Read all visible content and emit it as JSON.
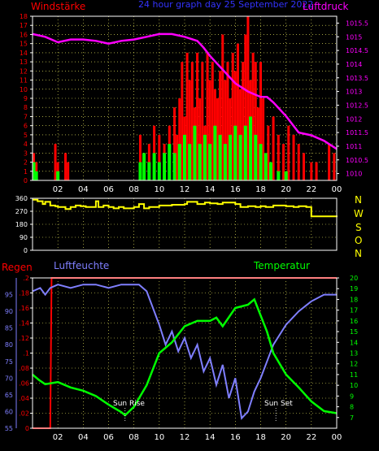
{
  "header": {
    "left_label": "Windstärke",
    "center_title": "24 hour graph day 25 September 2022",
    "right_label": "Luftdruck"
  },
  "wind_dir_labels": [
    "N",
    "W",
    "S",
    "O",
    "N"
  ],
  "bottom_labels": {
    "regen": "Regen",
    "luftfeuchte": "Luftfeuchte",
    "temperatur": "Temperatur",
    "sun_rise": "Sun Rise",
    "sun_set": "Sun Set"
  },
  "colors": {
    "background": "#000000",
    "axis": "#ffffff",
    "grid": "#ffff66",
    "wind_gust": "#ff0000",
    "wind_avg": "#00ff00",
    "pressure": "#ff00ff",
    "direction": "#ffff00",
    "humidity": "#7f7fff",
    "temperature": "#00ff00",
    "rain": "#ff0000",
    "title": "#3333ff",
    "right_axis_top": "#ff00ff",
    "tick_blue": "#7f7fff",
    "tick_green": "#00ff00"
  },
  "chart_data": [
    {
      "type": "bar",
      "name": "Windstärke / Luftdruck",
      "x_ticks": [
        "02",
        "04",
        "06",
        "08",
        "10",
        "12",
        "14",
        "16",
        "18",
        "20",
        "22",
        "00"
      ],
      "xlim": [
        0,
        24
      ],
      "left_axis": {
        "label": "Windstärke",
        "ylim": [
          0,
          18
        ],
        "ticks": [
          0,
          1,
          2,
          3,
          4,
          5,
          6,
          7,
          8,
          9,
          10,
          11,
          12,
          13,
          14,
          15,
          16,
          17,
          18
        ]
      },
      "right_axis": {
        "label": "Luftdruck",
        "ylim": [
          1009.75,
          1015.75
        ],
        "ticks": [
          1010,
          1010.5,
          1011,
          1011.5,
          1012,
          1012.5,
          1013,
          1013.5,
          1014,
          1014.5,
          1015,
          1015.5
        ]
      },
      "series": [
        {
          "name": "Windstärke",
          "kind": "gust",
          "x": [
            0.1,
            0.3,
            1.8,
            2.0,
            2.6,
            2.8,
            8.5,
            8.8,
            9.2,
            9.6,
            10.0,
            10.4,
            10.8,
            11.2,
            11.4,
            11.6,
            11.8,
            12.0,
            12.2,
            12.4,
            12.6,
            12.8,
            13.0,
            13.2,
            13.4,
            13.6,
            13.8,
            14.0,
            14.2,
            14.4,
            14.6,
            14.8,
            15.0,
            15.2,
            15.4,
            15.6,
            15.8,
            16.0,
            16.2,
            16.4,
            16.6,
            16.8,
            17.0,
            17.2,
            17.4,
            17.6,
            17.8,
            18.0,
            18.2,
            18.6,
            19.0,
            19.4,
            19.8,
            20.2,
            20.6,
            21.0,
            21.4,
            22.0,
            22.4,
            23.4,
            23.8
          ],
          "values": [
            3,
            2,
            4,
            2,
            3,
            2,
            5,
            3,
            4,
            6,
            5,
            4,
            6,
            8,
            5,
            9,
            13,
            7,
            14,
            11,
            13,
            8,
            14,
            9,
            13,
            6,
            14,
            11,
            13,
            10,
            9,
            12,
            16,
            11,
            13,
            9,
            14,
            12,
            15,
            10,
            13,
            16,
            18,
            11,
            14,
            13,
            8,
            13,
            9,
            6,
            7,
            5,
            4,
            6,
            5,
            4,
            3,
            2,
            2,
            4,
            3
          ]
        },
        {
          "name": "Windstärke",
          "kind": "avg",
          "x": [
            0.1,
            0.3,
            2.0,
            8.5,
            8.8,
            9.2,
            9.6,
            10.0,
            10.4,
            10.8,
            11.2,
            11.6,
            12.0,
            12.4,
            12.8,
            13.2,
            13.6,
            14.0,
            14.4,
            14.8,
            15.2,
            15.6,
            16.0,
            16.4,
            16.8,
            17.2,
            17.6,
            18.0,
            18.4,
            18.8,
            19.4,
            20.0
          ],
          "values": [
            2,
            1,
            1,
            2,
            3,
            2,
            3,
            2,
            3,
            4,
            3,
            4,
            5,
            4,
            6,
            4,
            5,
            4,
            6,
            5,
            4,
            5,
            6,
            5,
            6,
            7,
            5,
            4,
            3,
            2,
            1,
            1
          ]
        },
        {
          "name": "Luftdruck",
          "kind": "pressure",
          "x": [
            0,
            1,
            2,
            3,
            4,
            5,
            6,
            7,
            8,
            9,
            10,
            11,
            12,
            13,
            13.5,
            14,
            15,
            16,
            17,
            17.5,
            18,
            18.5,
            19,
            20,
            21,
            22,
            23,
            24
          ],
          "values": [
            1015.1,
            1015.0,
            1014.8,
            1014.9,
            1014.9,
            1014.85,
            1014.75,
            1014.85,
            1014.9,
            1015.0,
            1015.1,
            1015.1,
            1015.0,
            1014.85,
            1014.6,
            1014.3,
            1013.8,
            1013.3,
            1013.0,
            1012.9,
            1012.8,
            1012.8,
            1012.6,
            1012.1,
            1011.5,
            1011.4,
            1011.2,
            1010.9
          ]
        }
      ]
    },
    {
      "type": "line",
      "name": "Windrichtung",
      "x_ticks": [
        "02",
        "04",
        "06",
        "08",
        "10",
        "12",
        "14",
        "16",
        "18",
        "20",
        "22",
        "00"
      ],
      "xlim": [
        0,
        24
      ],
      "ylim": [
        0,
        360
      ],
      "y_ticks": [
        0,
        90,
        180,
        270,
        360
      ],
      "series": [
        {
          "name": "Windrichtung",
          "x": [
            0,
            0.4,
            0.8,
            1.0,
            1.4,
            1.8,
            2.0,
            2.6,
            3.0,
            3.4,
            3.8,
            4.2,
            4.6,
            5.0,
            5.2,
            5.6,
            6.0,
            6.4,
            6.8,
            7.2,
            8.0,
            8.4,
            8.8,
            9.2,
            10.0,
            11.0,
            12.0,
            12.2,
            13.0,
            13.6,
            14.0,
            14.6,
            15.0,
            16.0,
            16.4,
            17.0,
            17.6,
            18.0,
            18.4,
            19.0,
            20.0,
            20.6,
            21.0,
            21.6,
            22.0,
            24.0
          ],
          "values": [
            350,
            340,
            320,
            335,
            310,
            305,
            300,
            285,
            300,
            310,
            305,
            300,
            300,
            340,
            300,
            310,
            300,
            290,
            300,
            290,
            300,
            320,
            290,
            300,
            310,
            315,
            320,
            335,
            320,
            330,
            325,
            320,
            330,
            320,
            300,
            305,
            300,
            305,
            300,
            310,
            305,
            300,
            305,
            300,
            235,
            240
          ]
        }
      ]
    },
    {
      "type": "line",
      "name": "Regen / Luftfeuchte / Temperatur",
      "x_ticks": [
        "02",
        "04",
        "06",
        "08",
        "10",
        "12",
        "14",
        "16",
        "18",
        "20",
        "22",
        "00"
      ],
      "xlim": [
        0,
        24
      ],
      "y_axes": [
        {
          "label": "Luftfeuchte",
          "ylim": [
            55,
            100
          ],
          "ticks": [
            55,
            60,
            65,
            70,
            75,
            80,
            85,
            90,
            95
          ]
        },
        {
          "label": "Regen",
          "ylim": [
            0,
            0.2
          ],
          "ticks": [
            0,
            0.02,
            0.04,
            0.06,
            0.08,
            0.1,
            0.12,
            0.14,
            0.16,
            0.18,
            0.2
          ]
        },
        {
          "label": "Temperatur",
          "ylim": [
            6,
            20
          ],
          "ticks": [
            7,
            8,
            9,
            10,
            11,
            12,
            13,
            14,
            15,
            16,
            17,
            18,
            19,
            20
          ]
        }
      ],
      "series": [
        {
          "name": "Regen",
          "axis": 1,
          "x": [
            0,
            1.4,
            1.5,
            24
          ],
          "values": [
            0.0,
            0.0,
            0.2,
            0.2
          ]
        },
        {
          "name": "Luftfeuchte",
          "axis": 0,
          "x": [
            0,
            0.6,
            1.0,
            1.4,
            2.0,
            3.0,
            4.0,
            5.0,
            6.0,
            7.0,
            8.0,
            8.4,
            9.0,
            10.0,
            10.5,
            11.0,
            11.5,
            12.0,
            12.5,
            13.0,
            13.5,
            14.0,
            14.5,
            15.0,
            15.5,
            16.0,
            16.5,
            17.0,
            17.5,
            18.0,
            18.5,
            19.0,
            20.0,
            21.0,
            22.0,
            23.0,
            24.0
          ],
          "values": [
            96,
            97,
            95,
            97,
            98,
            97,
            98,
            98,
            97,
            98,
            98,
            98,
            96,
            86,
            80,
            84,
            78,
            82,
            76,
            80,
            72,
            76,
            68,
            74,
            64,
            70,
            58,
            60,
            66,
            70,
            75,
            80,
            86,
            90,
            93,
            95,
            95
          ]
        },
        {
          "name": "Temperatur",
          "axis": 2,
          "x": [
            0,
            0.5,
            1.0,
            1.5,
            2.0,
            3.0,
            4.0,
            5.0,
            6.0,
            7.0,
            7.3,
            8.0,
            9.0,
            10.0,
            10.5,
            11.0,
            12.0,
            13.0,
            14.0,
            14.5,
            15.0,
            16.0,
            17.0,
            17.5,
            18.0,
            18.5,
            19.0,
            20.0,
            21.0,
            22.0,
            23.0,
            24.0
          ],
          "values": [
            11,
            10.5,
            10.1,
            10.2,
            10.3,
            9.8,
            9.5,
            9.0,
            8.2,
            7.5,
            7.2,
            8.0,
            10.0,
            13.0,
            13.5,
            14.0,
            15.5,
            16.0,
            16.0,
            16.3,
            15.5,
            17.2,
            17.5,
            18.0,
            16.5,
            15.0,
            13.0,
            11.0,
            9.8,
            8.5,
            7.6,
            7.4
          ]
        }
      ]
    }
  ]
}
